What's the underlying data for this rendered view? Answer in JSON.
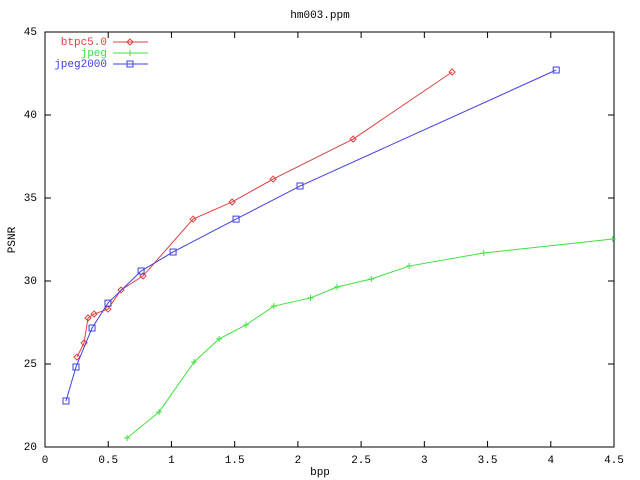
{
  "chart_data": {
    "type": "line",
    "title": "hm003.ppm",
    "x_label": "bpp",
    "y_label": "PSNR",
    "xlim": [
      0,
      4.5
    ],
    "ylim": [
      20,
      45
    ],
    "xticks": [
      0,
      0.5,
      1,
      1.5,
      2,
      2.5,
      3,
      3.5,
      4,
      4.5
    ],
    "yticks": [
      20,
      25,
      30,
      35,
      40,
      45
    ],
    "grid": false,
    "legend": "top-left",
    "series": [
      {
        "name": "btpc5.0",
        "color": "#e04040",
        "marker": "diamond",
        "x": [
          0.253,
          0.309,
          0.34,
          0.388,
          0.498,
          0.601,
          0.775,
          1.171,
          1.48,
          1.804,
          2.437,
          3.22
        ],
        "values": [
          25.42,
          26.27,
          27.77,
          28.01,
          28.31,
          29.46,
          30.3,
          33.73,
          34.76,
          36.14,
          38.55,
          42.59
        ]
      },
      {
        "name": "jpeg",
        "color": "#40e040",
        "marker": "plus",
        "x": [
          0.649,
          0.902,
          1.179,
          1.377,
          1.59,
          1.81,
          2.1,
          2.31,
          2.58,
          2.88,
          3.47,
          4.49
        ],
        "values": [
          20.54,
          22.11,
          25.12,
          26.51,
          27.35,
          28.49,
          28.98,
          29.64,
          30.12,
          30.9,
          31.69,
          32.53
        ]
      },
      {
        "name": "jpeg2000",
        "color": "#4040e0",
        "marker": "square",
        "x": [
          0.166,
          0.245,
          0.372,
          0.498,
          0.76,
          1.013,
          1.511,
          2.017,
          4.043
        ],
        "values": [
          22.77,
          24.82,
          27.17,
          28.67,
          30.6,
          31.75,
          33.73,
          35.72,
          42.71
        ]
      }
    ]
  }
}
